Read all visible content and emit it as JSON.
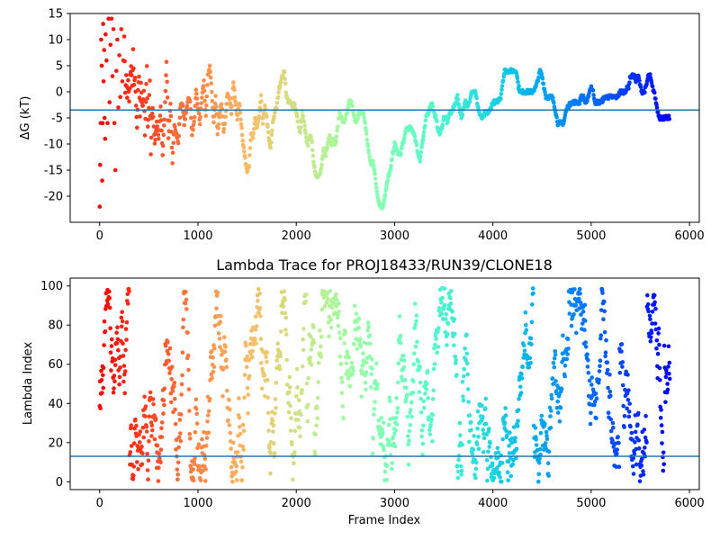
{
  "chart_data": [
    {
      "type": "scatter",
      "ylabel": "ΔG (kT)",
      "xlim": [
        -300,
        6100
      ],
      "ylim": [
        -25,
        15
      ],
      "xticks": [
        0,
        1000,
        2000,
        3000,
        4000,
        5000,
        6000
      ],
      "yticks": [
        -20,
        -15,
        -10,
        -5,
        0,
        5,
        10,
        15
      ],
      "hline": -3.5,
      "hline_color": "#1f77b4",
      "colormap": "rainbow (red at frame 0 to violet at last frame)",
      "x_max": 5800,
      "trace": [
        [
          0,
          -22
        ],
        [
          5,
          -14
        ],
        [
          10,
          -6
        ],
        [
          15,
          10
        ],
        [
          20,
          5
        ],
        [
          25,
          -17
        ],
        [
          30,
          -6
        ],
        [
          35,
          13
        ],
        [
          40,
          2
        ],
        [
          45,
          8
        ],
        [
          50,
          -5
        ],
        [
          55,
          -9
        ],
        [
          60,
          11
        ],
        [
          70,
          6
        ],
        [
          80,
          -6
        ],
        [
          90,
          14
        ],
        [
          100,
          -2
        ],
        [
          110,
          9
        ],
        [
          120,
          14
        ],
        [
          130,
          3
        ],
        [
          140,
          12
        ],
        [
          150,
          -6
        ],
        [
          160,
          -15
        ],
        [
          170,
          4
        ],
        [
          180,
          10
        ],
        [
          190,
          -3
        ],
        [
          200,
          7
        ],
        [
          210,
          -1
        ],
        [
          220,
          12
        ],
        [
          230,
          2
        ],
        [
          240,
          6
        ],
        [
          250,
          11
        ],
        [
          260,
          0
        ],
        [
          270,
          3
        ],
        [
          280,
          -1
        ],
        [
          290,
          2
        ],
        [
          300,
          -2
        ],
        [
          310,
          3
        ],
        [
          320,
          5
        ],
        [
          330,
          1
        ],
        [
          340,
          8
        ],
        [
          350,
          1
        ],
        [
          360,
          3
        ],
        [
          370,
          -3
        ],
        [
          380,
          -7
        ],
        [
          390,
          0
        ],
        [
          400,
          3
        ],
        [
          410,
          -5
        ],
        [
          420,
          2
        ],
        [
          430,
          -2
        ],
        [
          440,
          -3
        ],
        [
          450,
          0
        ],
        [
          460,
          -8
        ],
        [
          470,
          -2
        ],
        [
          480,
          5
        ],
        [
          490,
          -7
        ],
        [
          500,
          -3
        ],
        [
          510,
          2
        ],
        [
          520,
          -12
        ],
        [
          530,
          -5
        ],
        [
          540,
          -3
        ],
        [
          560,
          -10
        ],
        [
          580,
          -6
        ],
        [
          600,
          -9
        ],
        [
          620,
          -3
        ],
        [
          640,
          -12
        ],
        [
          660,
          -5
        ],
        [
          680,
          6
        ],
        [
          700,
          -9
        ],
        [
          720,
          -2
        ],
        [
          740,
          -14
        ],
        [
          760,
          -6
        ],
        [
          780,
          -8
        ],
        [
          800,
          -10
        ],
        [
          820,
          -3
        ],
        [
          840,
          -2
        ],
        [
          860,
          -6
        ],
        [
          880,
          -4
        ],
        [
          900,
          -1
        ],
        [
          920,
          -2
        ],
        [
          940,
          -8
        ],
        [
          960,
          -6
        ],
        [
          980,
          0
        ],
        [
          1000,
          -3
        ],
        [
          1020,
          -6
        ],
        [
          1040,
          -1
        ],
        [
          1060,
          2
        ],
        [
          1080,
          -5
        ],
        [
          1100,
          3
        ],
        [
          1120,
          5
        ],
        [
          1140,
          0
        ],
        [
          1160,
          -6
        ],
        [
          1180,
          -1
        ],
        [
          1200,
          -8
        ],
        [
          1220,
          -4
        ],
        [
          1240,
          -2
        ],
        [
          1260,
          -8
        ],
        [
          1280,
          -5
        ],
        [
          1300,
          0
        ],
        [
          1320,
          -1
        ],
        [
          1340,
          -4
        ],
        [
          1360,
          2
        ],
        [
          1380,
          -2
        ],
        [
          1400,
          -5
        ],
        [
          1420,
          -2
        ],
        [
          1440,
          -6
        ],
        [
          1460,
          -10
        ],
        [
          1480,
          -13
        ],
        [
          1500,
          -15
        ],
        [
          1520,
          -14
        ],
        [
          1540,
          -8
        ],
        [
          1560,
          -9
        ],
        [
          1580,
          -5
        ],
        [
          1600,
          -7
        ],
        [
          1620,
          -5
        ],
        [
          1640,
          -1
        ],
        [
          1660,
          -6
        ],
        [
          1680,
          -3
        ],
        [
          1700,
          -5
        ],
        [
          1720,
          -9
        ],
        [
          1740,
          -11
        ],
        [
          1760,
          -6
        ],
        [
          1780,
          -4
        ],
        [
          1800,
          -3
        ],
        [
          1820,
          0
        ],
        [
          1840,
          2
        ],
        [
          1860,
          3
        ],
        [
          1880,
          4
        ],
        [
          1900,
          -1
        ],
        [
          1920,
          -2
        ],
        [
          1940,
          -2
        ],
        [
          1960,
          -3
        ],
        [
          1980,
          -2
        ],
        [
          2000,
          -4
        ],
        [
          2020,
          -6
        ],
        [
          2040,
          -8
        ],
        [
          2060,
          -4
        ],
        [
          2080,
          -6
        ],
        [
          2100,
          -9
        ],
        [
          2120,
          -10
        ],
        [
          2140,
          -8
        ],
        [
          2160,
          -10
        ],
        [
          2180,
          -14
        ],
        [
          2200,
          -16
        ],
        [
          2240,
          -16
        ],
        [
          2260,
          -14
        ],
        [
          2280,
          -11
        ],
        [
          2300,
          -12
        ],
        [
          2320,
          -10
        ],
        [
          2340,
          -8
        ],
        [
          2360,
          -10
        ],
        [
          2380,
          -9
        ],
        [
          2400,
          -10
        ],
        [
          2420,
          -7
        ],
        [
          2440,
          -4
        ],
        [
          2460,
          -5
        ],
        [
          2480,
          -6
        ],
        [
          2500,
          -5
        ],
        [
          2520,
          -4
        ],
        [
          2540,
          -2
        ],
        [
          2560,
          -2
        ],
        [
          2580,
          -4
        ],
        [
          2600,
          -6
        ],
        [
          2620,
          -5
        ],
        [
          2640,
          -4
        ],
        [
          2660,
          -4
        ],
        [
          2680,
          -4
        ],
        [
          2700,
          -6
        ],
        [
          2720,
          -9
        ],
        [
          2740,
          -12
        ],
        [
          2760,
          -14
        ],
        [
          2780,
          -13
        ],
        [
          2800,
          -16
        ],
        [
          2820,
          -19
        ],
        [
          2840,
          -21
        ],
        [
          2860,
          -22
        ],
        [
          2880,
          -22
        ],
        [
          2900,
          -20
        ],
        [
          2920,
          -18
        ],
        [
          2940,
          -16
        ],
        [
          2960,
          -15
        ],
        [
          2980,
          -12
        ],
        [
          3000,
          -10
        ],
        [
          3020,
          -11
        ],
        [
          3040,
          -12
        ],
        [
          3060,
          -12
        ],
        [
          3080,
          -10
        ],
        [
          3100,
          -9
        ],
        [
          3120,
          -7
        ],
        [
          3160,
          -7
        ],
        [
          3200,
          -8
        ],
        [
          3220,
          -10
        ],
        [
          3240,
          -12
        ],
        [
          3260,
          -13
        ],
        [
          3280,
          -10
        ],
        [
          3300,
          -8
        ],
        [
          3320,
          -5
        ],
        [
          3340,
          -4
        ],
        [
          3360,
          -3
        ],
        [
          3380,
          -2
        ],
        [
          3400,
          -4
        ],
        [
          3420,
          -5
        ],
        [
          3440,
          -7
        ],
        [
          3460,
          -8
        ],
        [
          3480,
          -7
        ],
        [
          3500,
          -5
        ],
        [
          3520,
          -5
        ],
        [
          3540,
          -6
        ],
        [
          3560,
          -4
        ],
        [
          3580,
          -4
        ],
        [
          3600,
          -3
        ],
        [
          3620,
          -2
        ],
        [
          3640,
          -1
        ],
        [
          3660,
          -3
        ],
        [
          3680,
          -5
        ],
        [
          3700,
          -3
        ],
        [
          3720,
          -2
        ],
        [
          3740,
          -3
        ],
        [
          3760,
          -2
        ],
        [
          3780,
          0
        ],
        [
          3800,
          0
        ],
        [
          3820,
          0
        ],
        [
          3840,
          -2
        ],
        [
          3860,
          -4
        ],
        [
          3880,
          -5
        ],
        [
          3900,
          -5
        ],
        [
          3920,
          -4
        ],
        [
          3940,
          -4
        ],
        [
          3960,
          -4
        ],
        [
          3980,
          -3
        ],
        [
          4000,
          -2
        ],
        [
          4040,
          -2
        ],
        [
          4080,
          -1
        ],
        [
          4100,
          2
        ],
        [
          4120,
          4
        ],
        [
          4160,
          4
        ],
        [
          4200,
          4
        ],
        [
          4240,
          4
        ],
        [
          4260,
          1
        ],
        [
          4280,
          0
        ],
        [
          4320,
          0
        ],
        [
          4360,
          0
        ],
        [
          4400,
          0
        ],
        [
          4440,
          1
        ],
        [
          4480,
          4
        ],
        [
          4500,
          3
        ],
        [
          4520,
          1
        ],
        [
          4540,
          -1
        ],
        [
          4560,
          -1
        ],
        [
          4600,
          -1
        ],
        [
          4620,
          -2
        ],
        [
          4640,
          -4
        ],
        [
          4660,
          -6
        ],
        [
          4700,
          -6
        ],
        [
          4720,
          -6
        ],
        [
          4740,
          -4
        ],
        [
          4760,
          -3
        ],
        [
          4800,
          -2
        ],
        [
          4840,
          -2
        ],
        [
          4860,
          -2
        ],
        [
          4880,
          -2
        ],
        [
          4900,
          -1
        ],
        [
          4920,
          -1
        ],
        [
          4940,
          -2
        ],
        [
          4960,
          -2
        ],
        [
          4980,
          0
        ],
        [
          5000,
          1
        ],
        [
          5020,
          0
        ],
        [
          5040,
          -2
        ],
        [
          5060,
          -2
        ],
        [
          5100,
          -2
        ],
        [
          5140,
          -1
        ],
        [
          5180,
          -1
        ],
        [
          5220,
          -1
        ],
        [
          5260,
          -1
        ],
        [
          5300,
          0
        ],
        [
          5340,
          0
        ],
        [
          5380,
          1
        ],
        [
          5400,
          3
        ],
        [
          5440,
          3
        ],
        [
          5460,
          2
        ],
        [
          5480,
          3
        ],
        [
          5500,
          1
        ],
        [
          5520,
          0
        ],
        [
          5540,
          0
        ],
        [
          5560,
          1
        ],
        [
          5580,
          3
        ],
        [
          5600,
          3
        ],
        [
          5620,
          1
        ],
        [
          5640,
          0
        ],
        [
          5660,
          -2
        ],
        [
          5680,
          -4
        ],
        [
          5700,
          -5
        ],
        [
          5740,
          -5
        ],
        [
          5780,
          -5
        ],
        [
          5800,
          -5
        ]
      ]
    },
    {
      "type": "scatter",
      "title": "Lambda Trace for PROJ18433/RUN39/CLONE18",
      "xlabel": "Frame Index",
      "ylabel": "Lambda Index",
      "xlim": [
        -300,
        6100
      ],
      "ylim": [
        -4,
        104
      ],
      "xticks": [
        0,
        1000,
        2000,
        3000,
        4000,
        5000,
        6000
      ],
      "yticks": [
        0,
        20,
        40,
        60,
        80,
        100
      ],
      "hline": 13,
      "hline_color": "#1f77b4",
      "colormap": "rainbow (red at frame 0 to violet at last frame)",
      "x_max": 5800,
      "lambda_range": [
        0,
        99
      ],
      "points_per_frame_step": "dense random walk between 0 and 99"
    }
  ]
}
